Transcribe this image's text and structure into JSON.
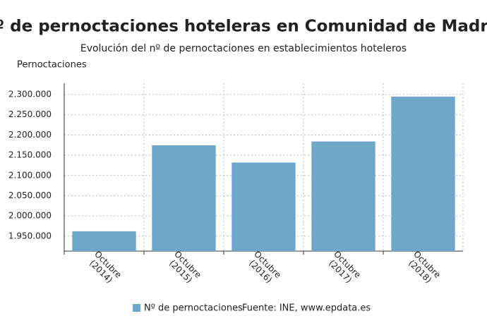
{
  "chart_data": {
    "type": "bar",
    "title": "Nº de pernoctaciones hoteleras en Comunidad de Madrid",
    "subtitle": "Evolución del nº de pernoctaciones en establecimientos hoteleros",
    "y_axis_label": "Pernoctaciones",
    "source": "Fuente: INE, www.epdata.es",
    "categories": [
      "Octubre (2014)",
      "Octubre (2015)",
      "Octubre (2016)",
      "Octubre (2017)",
      "Octubre (2018)"
    ],
    "series": [
      {
        "name": "Nº de pernoctaciones",
        "color": "#6fa7ca",
        "values": [
          1962000,
          2174500,
          2132000,
          2184000,
          2295000
        ]
      }
    ],
    "ylim": [
      1913000,
      2328000
    ],
    "yticks": [
      {
        "value": 1950000,
        "label": "1.950.000"
      },
      {
        "value": 2000000,
        "label": "2.000.000"
      },
      {
        "value": 2050000,
        "label": "2.050.000"
      },
      {
        "value": 2100000,
        "label": "2.100.000"
      },
      {
        "value": 2150000,
        "label": "2.150.000"
      },
      {
        "value": 2200000,
        "label": "2.200.000"
      },
      {
        "value": 2250000,
        "label": "2.250.000"
      },
      {
        "value": 2300000,
        "label": "2.300.000"
      }
    ],
    "grid": true
  }
}
